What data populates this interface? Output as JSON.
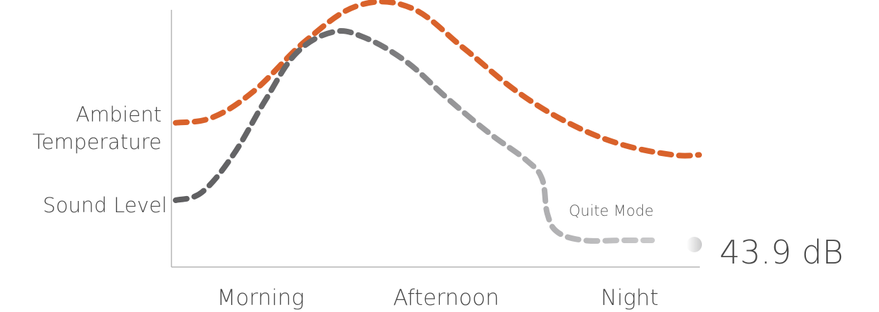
{
  "chart_data": {
    "type": "line",
    "title": "",
    "xlabel": "",
    "ylabel": "",
    "categories": [
      "Morning",
      "Afternoon",
      "Night"
    ],
    "y_labels": {
      "temperature": [
        "Ambient",
        "Temperature"
      ],
      "sound": "Sound Level"
    },
    "annotation": "Quite Mode",
    "readout": "43.9 dB",
    "grid": false,
    "legend": "none",
    "series": [
      {
        "name": "Ambient Temperature",
        "color": "#D9622B",
        "x": [
          0,
          0.07,
          0.15,
          0.25,
          0.35,
          0.45,
          0.55,
          0.65,
          0.75,
          0.85,
          0.95,
          1.0
        ],
        "values": [
          0.54,
          0.56,
          0.66,
          0.85,
          0.98,
          0.97,
          0.82,
          0.66,
          0.54,
          0.46,
          0.42,
          0.42
        ]
      },
      {
        "name": "Sound Level",
        "color_normal": "#6E6E6E",
        "color_light": "#A9A9AC",
        "color_quiet": "#CFCFD0",
        "x": [
          0,
          0.05,
          0.11,
          0.17,
          0.23,
          0.3,
          0.36,
          0.44,
          0.52,
          0.6,
          0.67,
          0.7,
          0.71,
          0.73,
          0.78,
          0.85,
          0.91
        ],
        "values": [
          0.25,
          0.28,
          0.42,
          0.62,
          0.8,
          0.88,
          0.86,
          0.77,
          0.63,
          0.5,
          0.4,
          0.33,
          0.2,
          0.13,
          0.1,
          0.1,
          0.1
        ]
      }
    ],
    "quiet_start_x": 0.72
  }
}
